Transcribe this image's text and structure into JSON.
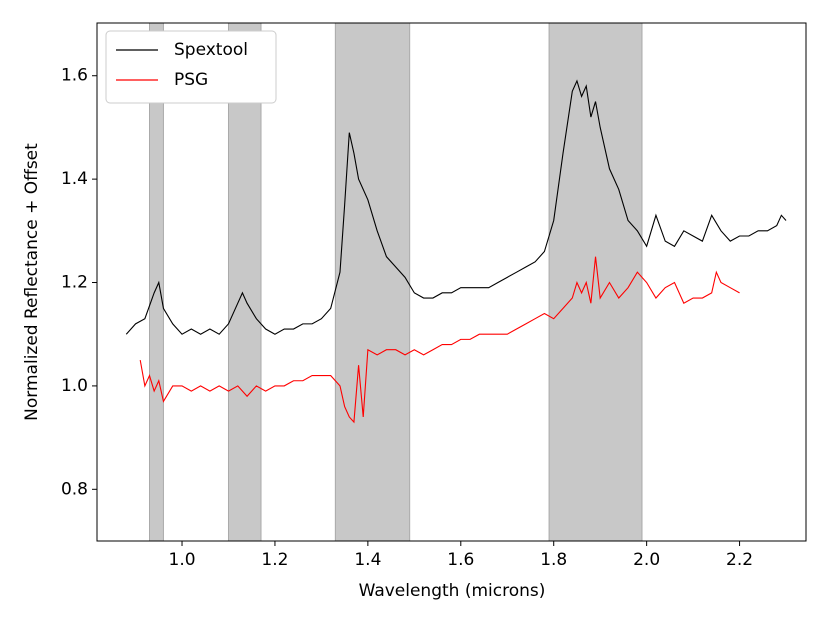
{
  "chart_data": {
    "type": "line",
    "xlabel": "Wavelength (microns)",
    "ylabel": "Normalized Reflectance + Offset",
    "xlim": [
      0.817,
      2.343
    ],
    "ylim": [
      0.7,
      1.702
    ],
    "xticks": [
      {
        "value": 1,
        "label": "1.0"
      },
      1.2,
      1.4,
      1.6,
      1.8,
      {
        "value": 2,
        "label": "2.0"
      },
      2.2
    ],
    "yticks": [
      0.8,
      {
        "value": 1,
        "label": "1.0"
      },
      1.2,
      1.4,
      1.6
    ],
    "bands": [
      [
        0.93,
        0.96
      ],
      [
        1.1,
        1.17
      ],
      [
        1.33,
        1.49
      ],
      [
        1.79,
        1.99
      ]
    ],
    "band_color": "#c8c8c8",
    "legend": "upper left",
    "series": [
      {
        "name": "Spextool",
        "color": "#000000",
        "x": [
          0.88,
          0.9,
          0.92,
          0.94,
          0.95,
          0.96,
          0.98,
          1.0,
          1.02,
          1.04,
          1.06,
          1.08,
          1.1,
          1.12,
          1.13,
          1.14,
          1.16,
          1.18,
          1.2,
          1.22,
          1.24,
          1.26,
          1.28,
          1.3,
          1.32,
          1.34,
          1.35,
          1.36,
          1.37,
          1.38,
          1.4,
          1.42,
          1.44,
          1.46,
          1.48,
          1.5,
          1.52,
          1.54,
          1.56,
          1.58,
          1.6,
          1.62,
          1.64,
          1.66,
          1.68,
          1.7,
          1.72,
          1.74,
          1.76,
          1.78,
          1.8,
          1.82,
          1.84,
          1.85,
          1.86,
          1.87,
          1.88,
          1.89,
          1.9,
          1.92,
          1.94,
          1.96,
          1.98,
          2.0,
          2.02,
          2.04,
          2.06,
          2.08,
          2.1,
          2.12,
          2.14,
          2.16,
          2.18,
          2.2,
          2.22,
          2.24,
          2.26,
          2.28,
          2.29,
          2.3
        ],
        "values": [
          1.1,
          1.12,
          1.13,
          1.18,
          1.2,
          1.15,
          1.12,
          1.1,
          1.11,
          1.1,
          1.11,
          1.1,
          1.12,
          1.16,
          1.18,
          1.16,
          1.13,
          1.11,
          1.1,
          1.11,
          1.11,
          1.12,
          1.12,
          1.13,
          1.15,
          1.22,
          1.35,
          1.49,
          1.45,
          1.4,
          1.36,
          1.3,
          1.25,
          1.23,
          1.21,
          1.18,
          1.17,
          1.17,
          1.18,
          1.18,
          1.19,
          1.19,
          1.19,
          1.19,
          1.2,
          1.21,
          1.22,
          1.23,
          1.24,
          1.26,
          1.32,
          1.45,
          1.57,
          1.59,
          1.56,
          1.58,
          1.52,
          1.55,
          1.5,
          1.42,
          1.38,
          1.32,
          1.3,
          1.27,
          1.33,
          1.28,
          1.27,
          1.3,
          1.29,
          1.28,
          1.33,
          1.3,
          1.28,
          1.29,
          1.29,
          1.3,
          1.3,
          1.31,
          1.33,
          1.32
        ]
      },
      {
        "name": "PSG",
        "color": "#ff0000",
        "x": [
          0.91,
          0.92,
          0.93,
          0.94,
          0.95,
          0.96,
          0.98,
          1.0,
          1.02,
          1.04,
          1.06,
          1.08,
          1.1,
          1.12,
          1.14,
          1.16,
          1.18,
          1.2,
          1.22,
          1.24,
          1.26,
          1.28,
          1.3,
          1.32,
          1.34,
          1.35,
          1.36,
          1.37,
          1.38,
          1.39,
          1.4,
          1.42,
          1.44,
          1.46,
          1.48,
          1.5,
          1.52,
          1.54,
          1.56,
          1.58,
          1.6,
          1.62,
          1.64,
          1.66,
          1.68,
          1.7,
          1.72,
          1.74,
          1.76,
          1.78,
          1.8,
          1.82,
          1.84,
          1.85,
          1.86,
          1.87,
          1.88,
          1.89,
          1.9,
          1.92,
          1.94,
          1.96,
          1.98,
          2.0,
          2.02,
          2.04,
          2.06,
          2.08,
          2.1,
          2.12,
          2.14,
          2.15,
          2.16,
          2.18,
          2.2
        ],
        "values": [
          1.05,
          1.0,
          1.02,
          0.99,
          1.01,
          0.97,
          1.0,
          1.0,
          0.99,
          1.0,
          0.99,
          1.0,
          0.99,
          1.0,
          0.98,
          1.0,
          0.99,
          1.0,
          1.0,
          1.01,
          1.01,
          1.02,
          1.02,
          1.02,
          1.0,
          0.96,
          0.94,
          0.93,
          1.04,
          0.94,
          1.07,
          1.06,
          1.07,
          1.07,
          1.06,
          1.07,
          1.06,
          1.07,
          1.08,
          1.08,
          1.09,
          1.09,
          1.1,
          1.1,
          1.1,
          1.1,
          1.11,
          1.12,
          1.13,
          1.14,
          1.13,
          1.15,
          1.17,
          1.2,
          1.18,
          1.2,
          1.16,
          1.25,
          1.17,
          1.2,
          1.17,
          1.19,
          1.22,
          1.2,
          1.17,
          1.19,
          1.2,
          1.16,
          1.17,
          1.17,
          1.18,
          1.22,
          1.2,
          1.19,
          1.18
        ]
      }
    ]
  }
}
